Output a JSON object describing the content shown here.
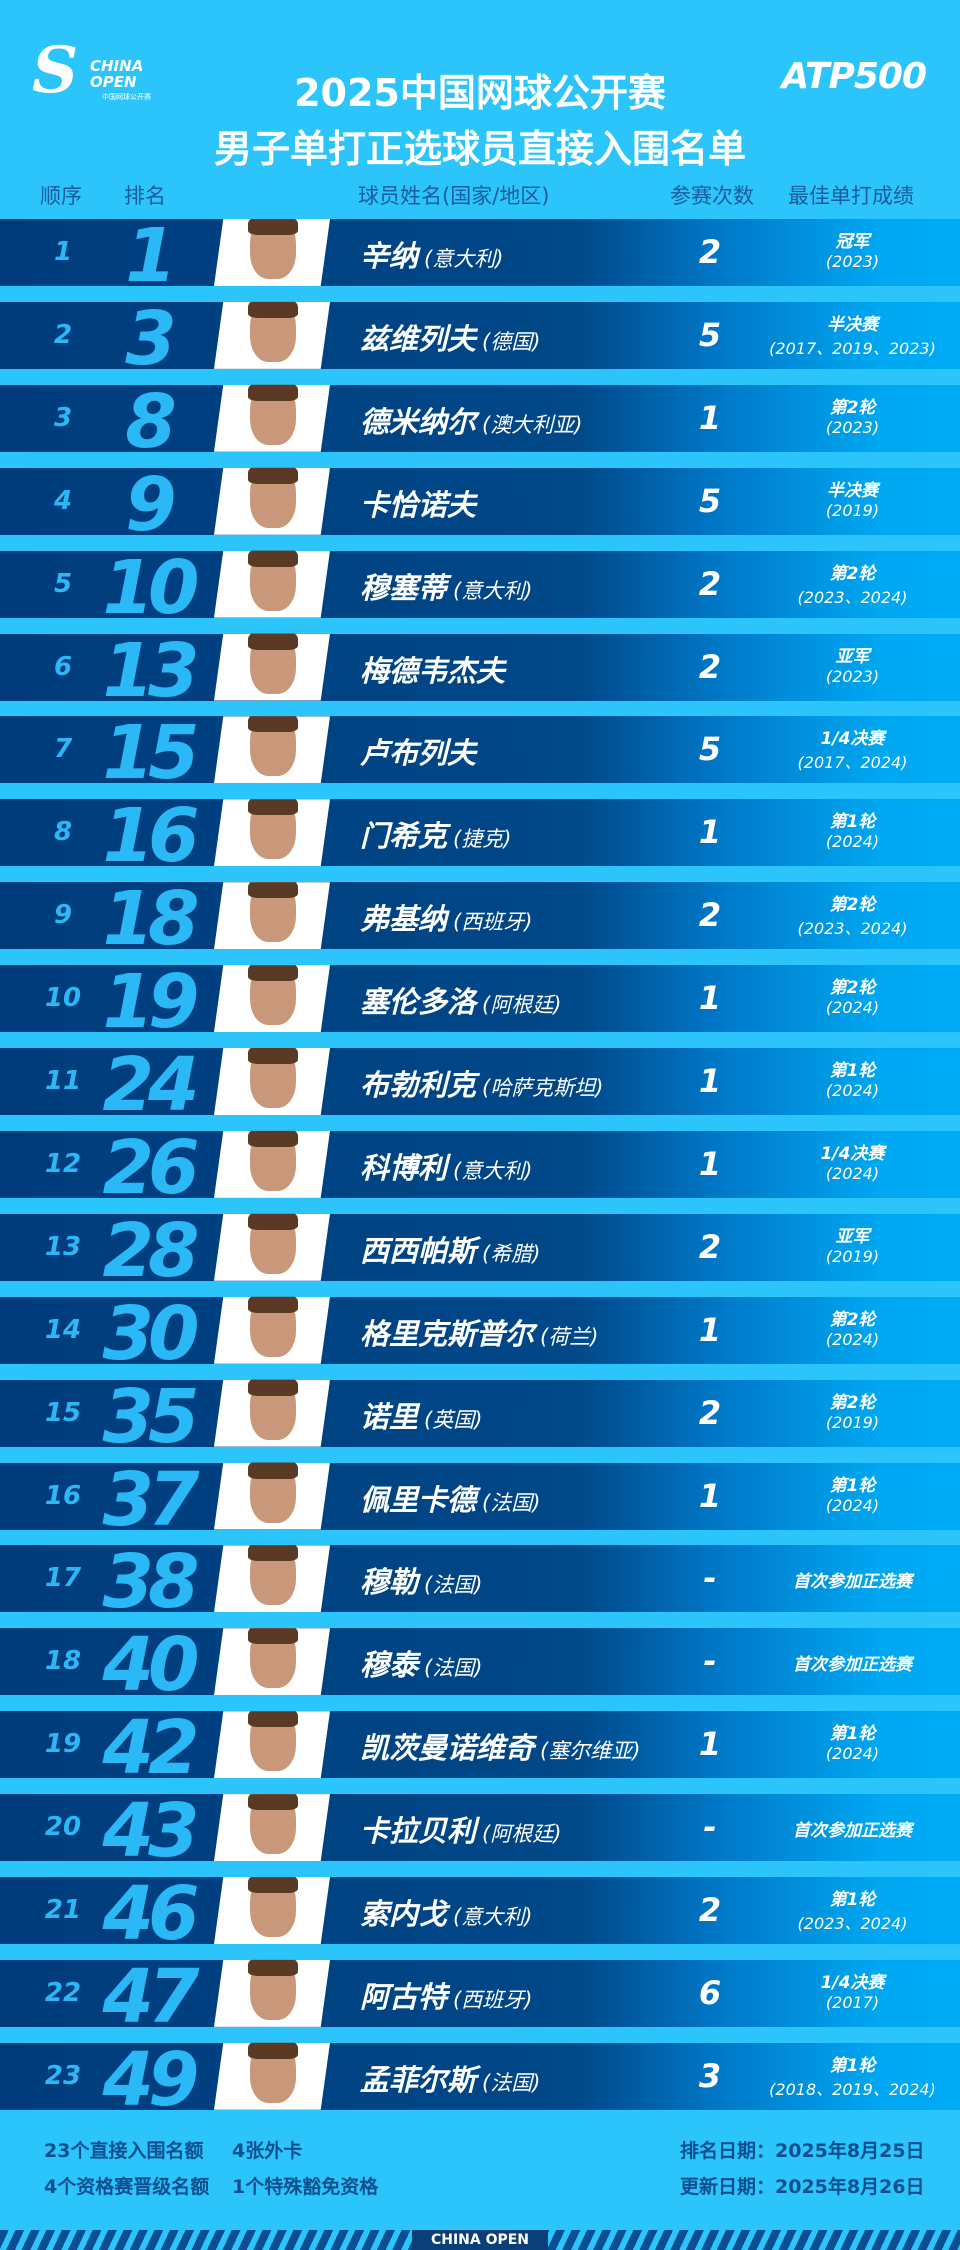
{
  "header": {
    "logo_text": "CHINA OPEN",
    "logo_sub": "中国网球公开赛",
    "atp": "ATP500",
    "title1": "2025中国网球公开赛",
    "title2": "男子单打正选球员直接入围名单"
  },
  "columns": {
    "order": "顺序",
    "rank": "排名",
    "player": "球员姓名(国家/地区)",
    "entries": "参赛次数",
    "best": "最佳单打成绩"
  },
  "colors": {
    "background": "#2bc5fb",
    "row": "#003c7c",
    "accent": "#2ab8f6"
  },
  "rows": [
    {
      "order": "1",
      "rank": "1",
      "name": "辛纳",
      "country": "(意大利)",
      "entries": "2",
      "best": "冠军",
      "years": "(2023)"
    },
    {
      "order": "2",
      "rank": "3",
      "name": "兹维列夫",
      "country": "(德国)",
      "entries": "5",
      "best": "半决赛",
      "years": "(2017、2019、2023)"
    },
    {
      "order": "3",
      "rank": "8",
      "name": "德米纳尔",
      "country": "(澳大利亚)",
      "entries": "1",
      "best": "第2轮",
      "years": "(2023)"
    },
    {
      "order": "4",
      "rank": "9",
      "name": "卡恰诺夫",
      "country": "",
      "entries": "5",
      "best": "半决赛",
      "years": "(2019)"
    },
    {
      "order": "5",
      "rank": "10",
      "name": "穆塞蒂",
      "country": "(意大利)",
      "entries": "2",
      "best": "第2轮",
      "years": "(2023、2024)"
    },
    {
      "order": "6",
      "rank": "13",
      "name": "梅德韦杰夫",
      "country": "",
      "entries": "2",
      "best": "亚军",
      "years": "(2023)"
    },
    {
      "order": "7",
      "rank": "15",
      "name": "卢布列夫",
      "country": "",
      "entries": "5",
      "best": "1/4决赛",
      "years": "(2017、2024)"
    },
    {
      "order": "8",
      "rank": "16",
      "name": "门希克",
      "country": "(捷克)",
      "entries": "1",
      "best": "第1轮",
      "years": "(2024)"
    },
    {
      "order": "9",
      "rank": "18",
      "name": "弗基纳",
      "country": "(西班牙)",
      "entries": "2",
      "best": "第2轮",
      "years": "(2023、2024)"
    },
    {
      "order": "10",
      "rank": "19",
      "name": "塞伦多洛",
      "country": "(阿根廷)",
      "entries": "1",
      "best": "第2轮",
      "years": "(2024)"
    },
    {
      "order": "11",
      "rank": "24",
      "name": "布勃利克",
      "country": "(哈萨克斯坦)",
      "entries": "1",
      "best": "第1轮",
      "years": "(2024)"
    },
    {
      "order": "12",
      "rank": "26",
      "name": "科博利",
      "country": "(意大利)",
      "entries": "1",
      "best": "1/4决赛",
      "years": "(2024)"
    },
    {
      "order": "13",
      "rank": "28",
      "name": "西西帕斯",
      "country": "(希腊)",
      "entries": "2",
      "best": "亚军",
      "years": "(2019)"
    },
    {
      "order": "14",
      "rank": "30",
      "name": "格里克斯普尔",
      "country": "(荷兰)",
      "entries": "1",
      "best": "第2轮",
      "years": "(2024)"
    },
    {
      "order": "15",
      "rank": "35",
      "name": "诺里",
      "country": "(英国)",
      "entries": "2",
      "best": "第2轮",
      "years": "(2019)"
    },
    {
      "order": "16",
      "rank": "37",
      "name": "佩里卡德",
      "country": "(法国)",
      "entries": "1",
      "best": "第1轮",
      "years": "(2024)"
    },
    {
      "order": "17",
      "rank": "38",
      "name": "穆勒",
      "country": "(法国)",
      "entries": "-",
      "best": "首次参加正选赛",
      "years": ""
    },
    {
      "order": "18",
      "rank": "40",
      "name": "穆泰",
      "country": "(法国)",
      "entries": "-",
      "best": "首次参加正选赛",
      "years": ""
    },
    {
      "order": "19",
      "rank": "42",
      "name": "凯茨曼诺维奇",
      "country": "(塞尔维亚)",
      "entries": "1",
      "best": "第1轮",
      "years": "(2024)"
    },
    {
      "order": "20",
      "rank": "43",
      "name": "卡拉贝利",
      "country": "(阿根廷)",
      "entries": "-",
      "best": "首次参加正选赛",
      "years": ""
    },
    {
      "order": "21",
      "rank": "46",
      "name": "索内戈",
      "country": "(意大利)",
      "entries": "2",
      "best": "第1轮",
      "years": "(2023、2024)"
    },
    {
      "order": "22",
      "rank": "47",
      "name": "阿古特",
      "country": "(西班牙)",
      "entries": "6",
      "best": "1/4决赛",
      "years": "(2017)"
    },
    {
      "order": "23",
      "rank": "49",
      "name": "孟菲尔斯",
      "country": "(法国)",
      "entries": "3",
      "best": "第1轮",
      "years": "(2018、2019、2024)"
    }
  ],
  "footer": {
    "l1a": "23个直接入围名额",
    "l1b": "4张外卡",
    "l2a": "4个资格赛晋级名额",
    "l2b": "1个特殊豁免资格",
    "rank_date": "排名日期：2025年8月25日",
    "update_date": "更新日期：2025年8月26日",
    "band": "CHINA OPEN"
  }
}
